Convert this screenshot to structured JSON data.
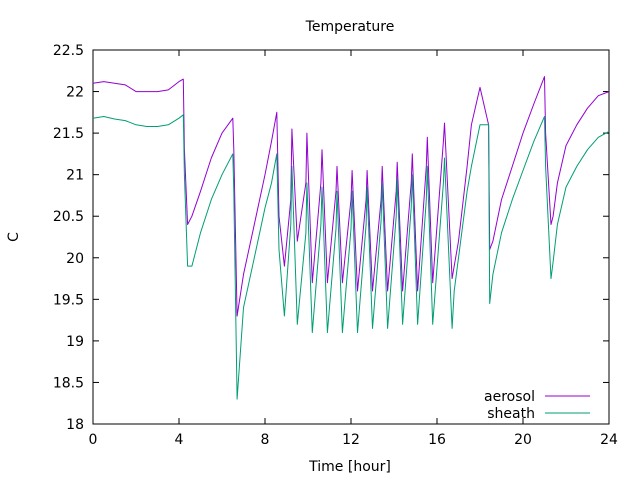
{
  "chart_data": {
    "type": "line",
    "title": "Temperature",
    "xlabel": "Time [hour]",
    "ylabel": "C",
    "xlim": [
      0,
      24
    ],
    "ylim": [
      18,
      22.5
    ],
    "xticks": [
      0,
      4,
      8,
      12,
      16,
      20,
      24
    ],
    "xtick_labels": [
      "0",
      "4",
      "8",
      "12",
      "16",
      "20",
      "24"
    ],
    "yticks": [
      18,
      18.5,
      19,
      19.5,
      20,
      20.5,
      21,
      21.5,
      22,
      22.5
    ],
    "ytick_labels": [
      "18",
      "18.5",
      "19",
      "19.5",
      "20",
      "20.5",
      "21",
      "21.5",
      "22",
      "22.5"
    ],
    "grid": false,
    "legend_position": "bottom-right",
    "series": [
      {
        "name": "aerosol",
        "color": "#9400d3",
        "x": [
          0,
          0.5,
          1,
          1.5,
          2,
          2.5,
          3,
          3.5,
          4,
          4.2,
          4.25,
          4.4,
          4.6,
          5.0,
          5.5,
          6.0,
          6.5,
          6.55,
          6.7,
          7.0,
          7.5,
          8.0,
          8.3,
          8.55,
          8.65,
          8.9,
          9.2,
          9.25,
          9.5,
          9.9,
          9.95,
          10.2,
          10.6,
          10.65,
          10.9,
          11.3,
          11.35,
          11.6,
          12.0,
          12.05,
          12.3,
          12.7,
          12.75,
          13.0,
          13.4,
          13.45,
          13.7,
          14.1,
          14.15,
          14.4,
          14.8,
          14.85,
          15.1,
          15.5,
          15.55,
          15.8,
          16.3,
          16.35,
          16.7,
          16.8,
          17.0,
          17.4,
          17.6,
          18.0,
          18.4,
          18.45,
          18.6,
          19.0,
          19.5,
          20.0,
          20.5,
          21.0,
          21.05,
          21.3,
          21.4,
          21.6,
          22.0,
          22.5,
          23.0,
          23.5,
          24.0
        ],
        "y": [
          22.1,
          22.12,
          22.1,
          22.08,
          22.0,
          22.0,
          22.0,
          22.02,
          22.12,
          22.15,
          21.3,
          20.4,
          20.5,
          20.8,
          21.2,
          21.5,
          21.68,
          21.3,
          19.3,
          19.8,
          20.4,
          21.0,
          21.4,
          21.75,
          20.5,
          19.9,
          20.7,
          21.55,
          20.2,
          20.9,
          21.5,
          19.7,
          20.9,
          21.3,
          19.7,
          20.8,
          21.1,
          19.7,
          20.7,
          21.05,
          19.6,
          20.7,
          21.05,
          19.6,
          20.7,
          21.1,
          19.6,
          20.8,
          21.15,
          19.6,
          20.9,
          21.25,
          19.6,
          21.1,
          21.45,
          19.7,
          21.4,
          21.62,
          19.75,
          19.9,
          20.2,
          21.1,
          21.6,
          22.05,
          21.6,
          20.1,
          20.2,
          20.7,
          21.1,
          21.5,
          21.85,
          22.18,
          21.5,
          20.4,
          20.5,
          20.9,
          21.35,
          21.6,
          21.8,
          21.95,
          22.0
        ]
      },
      {
        "name": "sheath",
        "color": "#009e73",
        "x": [
          0,
          0.5,
          1,
          1.5,
          2,
          2.5,
          3,
          3.5,
          4,
          4.2,
          4.25,
          4.4,
          4.6,
          5.0,
          5.5,
          6.0,
          6.5,
          6.55,
          6.7,
          7.0,
          7.5,
          8.0,
          8.3,
          8.55,
          8.65,
          8.9,
          9.2,
          9.25,
          9.5,
          9.9,
          9.95,
          10.2,
          10.6,
          10.65,
          10.9,
          11.3,
          11.35,
          11.6,
          12.0,
          12.05,
          12.3,
          12.7,
          12.75,
          13.0,
          13.4,
          13.45,
          13.7,
          14.1,
          14.15,
          14.4,
          14.8,
          14.85,
          15.1,
          15.5,
          15.55,
          15.8,
          16.3,
          16.35,
          16.7,
          16.8,
          17.0,
          17.4,
          17.6,
          18.0,
          18.4,
          18.45,
          18.6,
          19.0,
          19.5,
          20.0,
          20.5,
          21.0,
          21.05,
          21.3,
          21.4,
          21.6,
          22.0,
          22.5,
          23.0,
          23.5,
          24.0
        ],
        "y": [
          21.68,
          21.7,
          21.67,
          21.65,
          21.6,
          21.58,
          21.58,
          21.6,
          21.68,
          21.72,
          21.0,
          19.9,
          19.9,
          20.3,
          20.7,
          21.0,
          21.25,
          20.8,
          18.3,
          19.4,
          20.0,
          20.6,
          20.9,
          21.25,
          20.1,
          19.3,
          20.4,
          21.1,
          19.2,
          20.3,
          20.9,
          19.1,
          20.4,
          20.85,
          19.1,
          20.35,
          20.8,
          19.1,
          20.35,
          20.8,
          19.1,
          20.4,
          20.85,
          19.15,
          20.45,
          20.9,
          19.15,
          20.5,
          20.95,
          19.2,
          20.6,
          21.0,
          19.2,
          20.7,
          21.1,
          19.2,
          20.9,
          21.2,
          19.15,
          19.6,
          20.0,
          20.8,
          21.1,
          21.6,
          21.6,
          19.45,
          19.8,
          20.3,
          20.7,
          21.05,
          21.4,
          21.7,
          21.1,
          19.75,
          19.95,
          20.4,
          20.85,
          21.1,
          21.3,
          21.45,
          21.52
        ]
      }
    ]
  }
}
